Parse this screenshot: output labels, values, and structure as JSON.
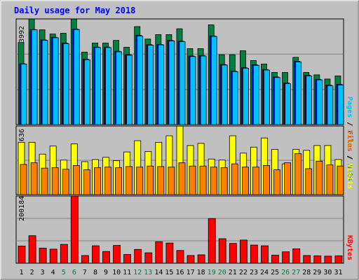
{
  "chart_data": [
    {
      "panel": "hits-files-pages",
      "type": "bar",
      "title": "Daily usage for May 2018",
      "ymax_label": "3992",
      "ylim": [
        0,
        3992
      ],
      "categories": [
        "1",
        "2",
        "3",
        "4",
        "5",
        "6",
        "7",
        "8",
        "9",
        "10",
        "11",
        "12",
        "13",
        "14",
        "15",
        "16",
        "17",
        "18",
        "19",
        "20",
        "21",
        "22",
        "23",
        "24",
        "25",
        "26",
        "27",
        "28",
        "29",
        "30",
        "31"
      ],
      "weekend_days": [
        "5",
        "6",
        "12",
        "13",
        "19",
        "20",
        "26",
        "27"
      ],
      "series": [
        {
          "name": "Hits",
          "values": [
            3100,
            3992,
            3580,
            3420,
            3450,
            3990,
            2740,
            3080,
            3080,
            3180,
            2920,
            3700,
            3230,
            3400,
            3400,
            3620,
            2870,
            2870,
            3770,
            2640,
            2640,
            2790,
            2420,
            2290,
            1970,
            1970,
            2540,
            1970,
            1880,
            1720,
            1840
          ]
        },
        {
          "name": "Files",
          "values": [
            2300,
            3590,
            3200,
            3300,
            3080,
            3610,
            2470,
            2930,
            2930,
            2770,
            2640,
            3370,
            3020,
            3030,
            3180,
            3150,
            2590,
            2610,
            3350,
            2270,
            2020,
            2150,
            2260,
            2080,
            1800,
            1570,
            2390,
            1860,
            1710,
            1490,
            1520
          ]
        },
        {
          "name": "Pages",
          "values": [
            2290,
            3580,
            3180,
            3280,
            3060,
            3590,
            2450,
            2910,
            2910,
            2750,
            2620,
            3350,
            3000,
            3010,
            3160,
            3130,
            2570,
            2590,
            3330,
            2250,
            2000,
            2130,
            2240,
            2060,
            1780,
            1550,
            2370,
            1840,
            1690,
            1470,
            1500
          ]
        }
      ],
      "axis_labels": [
        "Pages",
        "Files",
        "Hits"
      ],
      "axis_separator": " / "
    },
    {
      "panel": "visits-sites",
      "type": "bar",
      "ymax_label": "636",
      "ylim": [
        0,
        636
      ],
      "series": [
        {
          "name": "Visits",
          "values": [
            485,
            485,
            375,
            450,
            320,
            470,
            305,
            325,
            345,
            315,
            395,
            500,
            400,
            485,
            545,
            635,
            455,
            475,
            330,
            320,
            545,
            385,
            440,
            525,
            420,
            285,
            420,
            410,
            455,
            455,
            325
          ]
        },
        {
          "name": "Sites",
          "values": [
            280,
            295,
            245,
            250,
            235,
            270,
            230,
            250,
            255,
            250,
            260,
            255,
            265,
            260,
            255,
            295,
            265,
            265,
            255,
            250,
            285,
            255,
            255,
            270,
            230,
            295,
            380,
            240,
            310,
            275,
            265
          ]
        }
      ],
      "axis_labels": [
        "Sites",
        "Visits"
      ],
      "axis_separator": " / "
    },
    {
      "panel": "kbytes",
      "type": "bar",
      "ymax_label": "200184",
      "ylim": [
        0,
        200184
      ],
      "series": [
        {
          "name": "KBytes",
          "values": [
            51000,
            82000,
            45000,
            42000,
            56000,
            200184,
            23000,
            52000,
            35000,
            53000,
            26000,
            41000,
            31000,
            64000,
            60000,
            38000,
            23000,
            25000,
            133000,
            73000,
            59000,
            69000,
            54000,
            52000,
            24000,
            34000,
            43000,
            23000,
            22000,
            21000,
            22000
          ]
        }
      ],
      "axis_labels": [
        "KBytes"
      ]
    }
  ],
  "colors": {
    "background": "#c0c0c0",
    "hits": "#008040",
    "files": "#0000ff",
    "pages": "#00c0ff",
    "visits": "#ffff00",
    "sites": "#ff8000",
    "kbytes": "#ff0000",
    "title": "#0000ff",
    "weekend_label": "#008040",
    "day_label": "#000000",
    "separator": "#000000"
  }
}
